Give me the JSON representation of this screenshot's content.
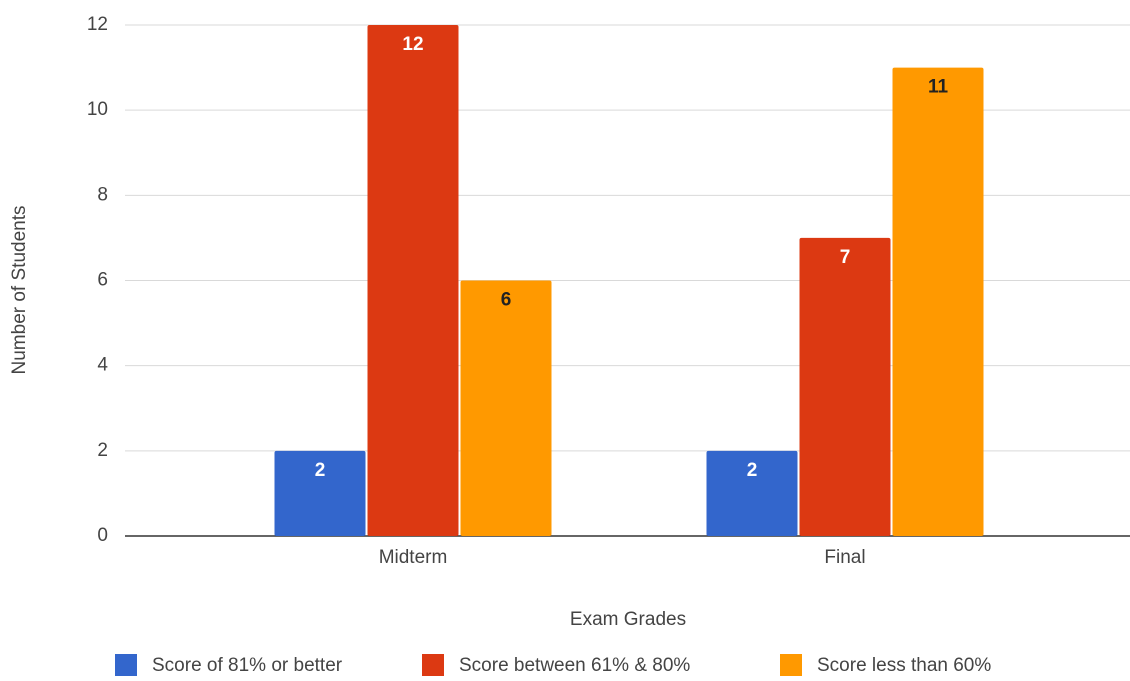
{
  "chart_data": {
    "type": "bar",
    "x_label": "Exam Grades",
    "y_label": "Number of Students",
    "categories": [
      "Midterm",
      "Final"
    ],
    "series": [
      {
        "name": "Score of 81% or better",
        "color": "#3366cc",
        "label_color": "#ffffff",
        "values": [
          2,
          2
        ]
      },
      {
        "name": "Score between 61% & 80%",
        "color": "#dc3912",
        "label_color": "#ffffff",
        "values": [
          12,
          7
        ]
      },
      {
        "name": "Score less than 60%",
        "color": "#ff9900",
        "label_color": "#222222",
        "values": [
          6,
          11
        ]
      }
    ],
    "ylim": [
      0,
      12
    ],
    "yticks": [
      0,
      2,
      4,
      6,
      8,
      10,
      12
    ],
    "grid": true,
    "legend": "bottom"
  }
}
